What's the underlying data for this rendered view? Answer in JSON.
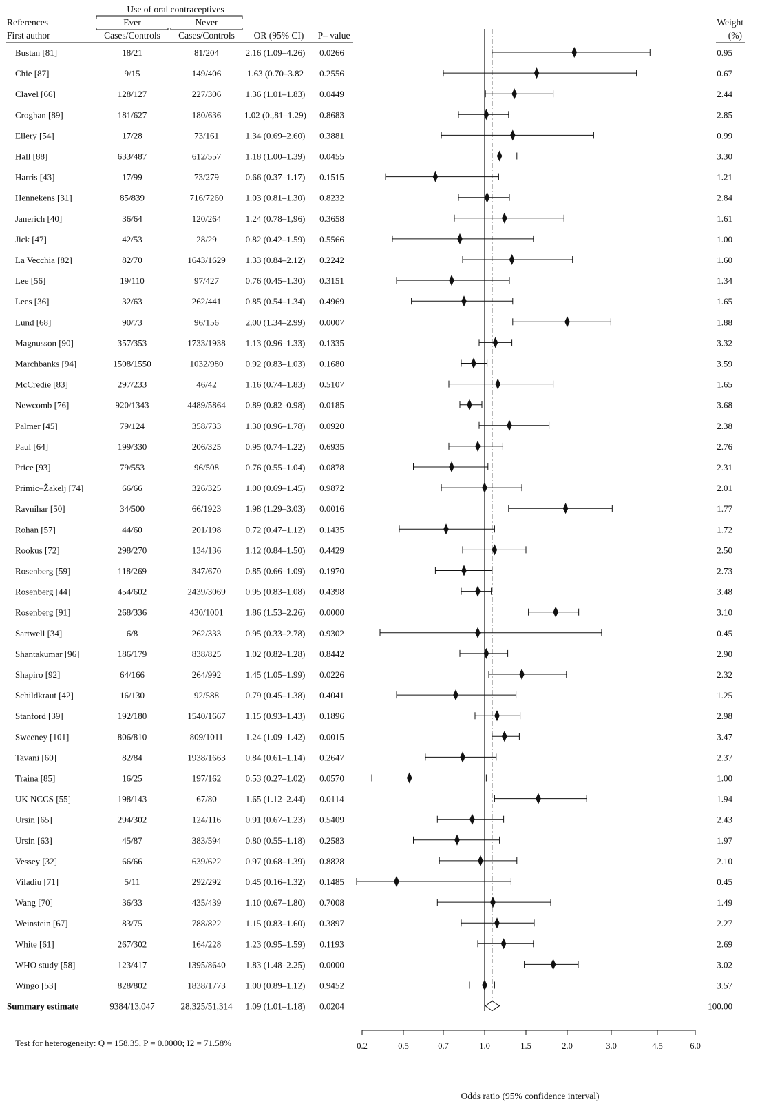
{
  "header": {
    "group_title": "Use of oral contraceptives",
    "col_references": "References",
    "col_first_author": "First author",
    "col_ever": "Ever",
    "col_never": "Never",
    "col_ever_sub": "Cases/Controls",
    "col_never_sub": "Cases/Controls",
    "col_or": "OR (95% CI)",
    "col_p": "P– value",
    "col_weight": "Weight",
    "col_weight_unit": "(%)"
  },
  "footer_note": "Test for heterogeneity: Q = 158.35, P = 0.0000; I2 = 71.58%",
  "chart_data": {
    "type": "forest",
    "xlabel": "Odds ratio (95% confidence interval)",
    "x_ticks": [
      "0.2",
      "0.5",
      "0.7",
      "1.0",
      "1.5",
      "2.0",
      "3.0",
      "4.5",
      "6.0"
    ],
    "reference_line": 1.0,
    "summary_line": 1.09,
    "studies": [
      {
        "author": "Bustan [81]",
        "ever": "18/21",
        "never": "81/204",
        "ci_text": "2.16 (1.09–4.26)",
        "p": "0.0266",
        "weight": "0.95",
        "or": 2.16,
        "lo": 1.09,
        "hi": 4.26
      },
      {
        "author": "Chie [87]",
        "ever": "9/15",
        "never": "149/406",
        "ci_text": "1.63 (0.70–3.82",
        "p": "0.2556",
        "weight": "0.67",
        "or": 1.63,
        "lo": 0.7,
        "hi": 3.82
      },
      {
        "author": "Clavel [66]",
        "ever": "128/127",
        "never": "227/306",
        "ci_text": "1.36 (1.01–1.83)",
        "p": "0.0449",
        "weight": "2.44",
        "or": 1.36,
        "lo": 1.01,
        "hi": 1.83
      },
      {
        "author": "Croghan [89]",
        "ever": "181/627",
        "never": "180/636",
        "ci_text": "1.02 (0.,81–1.29)",
        "p": "0.8683",
        "weight": "2.85",
        "or": 1.02,
        "lo": 0.81,
        "hi": 1.29
      },
      {
        "author": "Ellery [54]",
        "ever": "17/28",
        "never": "73/161",
        "ci_text": "1.34 (0.69–2.60)",
        "p": "0.3881",
        "weight": "0.99",
        "or": 1.34,
        "lo": 0.69,
        "hi": 2.6
      },
      {
        "author": "Hall [88]",
        "ever": "633/487",
        "never": "612/557",
        "ci_text": "1.18 (1.00–1.39)",
        "p": "0.0455",
        "weight": "3.30",
        "or": 1.18,
        "lo": 1.0,
        "hi": 1.39
      },
      {
        "author": "Harris [43]",
        "ever": "17/99",
        "never": "73/279",
        "ci_text": "0.66 (0.37–1.17)",
        "p": "0.1515",
        "weight": "1.21",
        "or": 0.66,
        "lo": 0.37,
        "hi": 1.17
      },
      {
        "author": "Hennekens [31]",
        "ever": "85/839",
        "never": "716/7260",
        "ci_text": "1.03 (0.81–1.30)",
        "p": "0.8232",
        "weight": "2.84",
        "or": 1.03,
        "lo": 0.81,
        "hi": 1.3
      },
      {
        "author": "Janerich [40]",
        "ever": "36/64",
        "never": "120/264",
        "ci_text": "1.24 (0.78–1,96)",
        "p": "0.3658",
        "weight": "1.61",
        "or": 1.24,
        "lo": 0.78,
        "hi": 1.96
      },
      {
        "author": "Jick [47]",
        "ever": "42/53",
        "never": "28/29",
        "ci_text": "0.82 (0.42–1.59)",
        "p": "0.5566",
        "weight": "1.00",
        "or": 0.82,
        "lo": 0.42,
        "hi": 1.59
      },
      {
        "author": "La Vecchia [82]",
        "ever": "82/70",
        "never": "1643/1629",
        "ci_text": "1.33 (0.84–2.12)",
        "p": "0.2242",
        "weight": "1.60",
        "or": 1.33,
        "lo": 0.84,
        "hi": 2.12
      },
      {
        "author": "Lee [56]",
        "ever": "19/110",
        "never": "97/427",
        "ci_text": "0.76 (0.45–1.30)",
        "p": "0.3151",
        "weight": "1.34",
        "or": 0.76,
        "lo": 0.45,
        "hi": 1.3
      },
      {
        "author": "Lees [36]",
        "ever": "32/63",
        "never": "262/441",
        "ci_text": "0.85 (0.54–1.34)",
        "p": "0.4969",
        "weight": "1.65",
        "or": 0.85,
        "lo": 0.54,
        "hi": 1.34
      },
      {
        "author": "Lund [68]",
        "ever": "90/73",
        "never": "96/156",
        "ci_text": "2,00 (1.34–2.99)",
        "p": "0.0007",
        "weight": "1.88",
        "or": 2.0,
        "lo": 1.34,
        "hi": 2.99
      },
      {
        "author": "Magnusson [90]",
        "ever": "357/353",
        "never": "1733/1938",
        "ci_text": "1.13 (0.96–1.33)",
        "p": "0.1335",
        "weight": "3.32",
        "or": 1.13,
        "lo": 0.96,
        "hi": 1.33
      },
      {
        "author": "Marchbanks [94]",
        "ever": "1508/1550",
        "never": "1032/980",
        "ci_text": "0.92 (0.83–1.03)",
        "p": "0.1680",
        "weight": "3.59",
        "or": 0.92,
        "lo": 0.83,
        "hi": 1.03
      },
      {
        "author": "McCredie [83]",
        "ever": "297/233",
        "never": "46/42",
        "ci_text": "1.16 (0.74–1.83)",
        "p": "0.5107",
        "weight": "1.65",
        "or": 1.16,
        "lo": 0.74,
        "hi": 1.83
      },
      {
        "author": "Newcomb [76]",
        "ever": "920/1343",
        "never": "4489/5864",
        "ci_text": "0.89 (0.82–0.98)",
        "p": "0.0185",
        "weight": "3.68",
        "or": 0.89,
        "lo": 0.82,
        "hi": 0.98
      },
      {
        "author": "Palmer [45]",
        "ever": "79/124",
        "never": "358/733",
        "ci_text": "1.30 (0.96–1.78)",
        "p": "0.0920",
        "weight": "2.38",
        "or": 1.3,
        "lo": 0.96,
        "hi": 1.78
      },
      {
        "author": "Paul [64]",
        "ever": "199/330",
        "never": "206/325",
        "ci_text": "0.95 (0.74–1.22)",
        "p": "0.6935",
        "weight": "2.76",
        "or": 0.95,
        "lo": 0.74,
        "hi": 1.22
      },
      {
        "author": "Price [93]",
        "ever": "79/553",
        "never": "96/508",
        "ci_text": "0.76 (0.55–1.04)",
        "p": "0.0878",
        "weight": "2.31",
        "or": 0.76,
        "lo": 0.55,
        "hi": 1.04
      },
      {
        "author": "Primic–Žakelj [74]",
        "ever": "66/66",
        "never": "326/325",
        "ci_text": "1.00 (0.69–1.45)",
        "p": "0.9872",
        "weight": "2.01",
        "or": 1.0,
        "lo": 0.69,
        "hi": 1.45
      },
      {
        "author": "Ravnihar [50]",
        "ever": "34/500",
        "never": "66/1923",
        "ci_text": "1.98 (1.29–3.03)",
        "p": "0.0016",
        "weight": "1.77",
        "or": 1.98,
        "lo": 1.29,
        "hi": 3.03
      },
      {
        "author": "Rohan [57]",
        "ever": "44/60",
        "never": "201/198",
        "ci_text": "0.72 (0.47–1.12)",
        "p": "0.1435",
        "weight": "1.72",
        "or": 0.72,
        "lo": 0.47,
        "hi": 1.12
      },
      {
        "author": "Rookus [72]",
        "ever": "298/270",
        "never": "134/136",
        "ci_text": "1.12 (0.84–1.50)",
        "p": "0.4429",
        "weight": "2.50",
        "or": 1.12,
        "lo": 0.84,
        "hi": 1.5
      },
      {
        "author": "Rosenberg [59]",
        "ever": "118/269",
        "never": "347/670",
        "ci_text": "0.85 (0.66–1.09)",
        "p": "0.1970",
        "weight": "2.73",
        "or": 0.85,
        "lo": 0.66,
        "hi": 1.09
      },
      {
        "author": "Rosenberg [44]",
        "ever": "454/602",
        "never": "2439/3069",
        "ci_text": "0.95 (0.83–1.08)",
        "p": "0.4398",
        "weight": "3.48",
        "or": 0.95,
        "lo": 0.83,
        "hi": 1.08
      },
      {
        "author": "Rosenberg [91]",
        "ever": "268/336",
        "never": "430/1001",
        "ci_text": "1.86 (1.53–2.26)",
        "p": "0.0000",
        "weight": "3.10",
        "or": 1.86,
        "lo": 1.53,
        "hi": 2.26
      },
      {
        "author": "Sartwell [34]",
        "ever": "6/8",
        "never": "262/333",
        "ci_text": "0.95 (0.33–2.78)",
        "p": "0.9302",
        "weight": "0.45",
        "or": 0.95,
        "lo": 0.33,
        "hi": 2.78
      },
      {
        "author": "Shantakumar [96]",
        "ever": "186/179",
        "never": "838/825",
        "ci_text": "1.02 (0.82–1.28)",
        "p": "0.8442",
        "weight": "2.90",
        "or": 1.02,
        "lo": 0.82,
        "hi": 1.28
      },
      {
        "author": "Shapiro [92]",
        "ever": "64/166",
        "never": "264/992",
        "ci_text": "1.45 (1.05–1.99)",
        "p": "0.0226",
        "weight": "2.32",
        "or": 1.45,
        "lo": 1.05,
        "hi": 1.99
      },
      {
        "author": "Schildkraut [42]",
        "ever": "16/130",
        "never": "92/588",
        "ci_text": "0.79 (0.45–1.38)",
        "p": "0.4041",
        "weight": "1.25",
        "or": 0.79,
        "lo": 0.45,
        "hi": 1.38
      },
      {
        "author": "Stanford [39]",
        "ever": "192/180",
        "never": "1540/1667",
        "ci_text": "1.15 (0.93–1.43)",
        "p": "0.1896",
        "weight": "2.98",
        "or": 1.15,
        "lo": 0.93,
        "hi": 1.43
      },
      {
        "author": "Sweeney [101]",
        "ever": "806/810",
        "never": "809/1011",
        "ci_text": "1.24 (1.09–1.42)",
        "p": "0.0015",
        "weight": "3.47",
        "or": 1.24,
        "lo": 1.09,
        "hi": 1.42
      },
      {
        "author": "Tavani [60]",
        "ever": "82/84",
        "never": "1938/1663",
        "ci_text": "0.84 (0.61–1.14)",
        "p": "0.2647",
        "weight": "2.37",
        "or": 0.84,
        "lo": 0.61,
        "hi": 1.14
      },
      {
        "author": "Traina [85]",
        "ever": "16/25",
        "never": "197/162",
        "ci_text": "0.53 (0.27–1.02)",
        "p": "0.0570",
        "weight": "1.00",
        "or": 0.53,
        "lo": 0.27,
        "hi": 1.02
      },
      {
        "author": "UK NCCS [55]",
        "ever": "198/143",
        "never": "67/80",
        "ci_text": "1.65 (1.12–2.44)",
        "p": "0.0114",
        "weight": "1.94",
        "or": 1.65,
        "lo": 1.12,
        "hi": 2.44
      },
      {
        "author": "Ursin [65]",
        "ever": "294/302",
        "never": "124/116",
        "ci_text": "0.91 (0.67–1.23)",
        "p": "0.5409",
        "weight": "2.43",
        "or": 0.91,
        "lo": 0.67,
        "hi": 1.23
      },
      {
        "author": "Ursin [63]",
        "ever": "45/87",
        "never": "383/594",
        "ci_text": "0.80 (0.55–1.18)",
        "p": "0.2583",
        "weight": "1.97",
        "or": 0.8,
        "lo": 0.55,
        "hi": 1.18
      },
      {
        "author": "Vessey [32]",
        "ever": "66/66",
        "never": "639/622",
        "ci_text": "0.97 (0.68–1.39)",
        "p": "0.8828",
        "weight": "2.10",
        "or": 0.97,
        "lo": 0.68,
        "hi": 1.39
      },
      {
        "author": "Viladiu [71]",
        "ever": "5/11",
        "never": "292/292",
        "ci_text": "0.45 (0.16–1.32)",
        "p": "0.1485",
        "weight": "0.45",
        "or": 0.45,
        "lo": 0.16,
        "hi": 1.32
      },
      {
        "author": "Wang [70]",
        "ever": "36/33",
        "never": "435/439",
        "ci_text": "1.10 (0.67–1.80)",
        "p": "0.7008",
        "weight": "1.49",
        "or": 1.1,
        "lo": 0.67,
        "hi": 1.8
      },
      {
        "author": "Weinstein [67]",
        "ever": "83/75",
        "never": "788/822",
        "ci_text": "1.15 (0.83–1.60)",
        "p": "0.3897",
        "weight": "2.27",
        "or": 1.15,
        "lo": 0.83,
        "hi": 1.6
      },
      {
        "author": "White [61]",
        "ever": "267/302",
        "never": "164/228",
        "ci_text": "1.23 (0.95–1.59)",
        "p": "0.1193",
        "weight": "2.69",
        "or": 1.23,
        "lo": 0.95,
        "hi": 1.59
      },
      {
        "author": "WHO study [58]",
        "ever": "123/417",
        "never": "1395/8640",
        "ci_text": "1.83 (1.48–2.25)",
        "p": "0.0000",
        "weight": "3.02",
        "or": 1.83,
        "lo": 1.48,
        "hi": 2.25
      },
      {
        "author": "Wingo [53]",
        "ever": "828/802",
        "never": "1838/1773",
        "ci_text": "1.00 (0.89–1.12)",
        "p": "0.9452",
        "weight": "3.57",
        "or": 1.0,
        "lo": 0.89,
        "hi": 1.12
      }
    ],
    "summary": {
      "author": "Summary estimate",
      "ever": "9384/13,047",
      "never": "28,325/51,314",
      "ci_text": "1.09 (1.01–1.18)",
      "p": "0.0204",
      "weight": "100.00",
      "or": 1.09,
      "lo": 1.01,
      "hi": 1.18
    }
  }
}
